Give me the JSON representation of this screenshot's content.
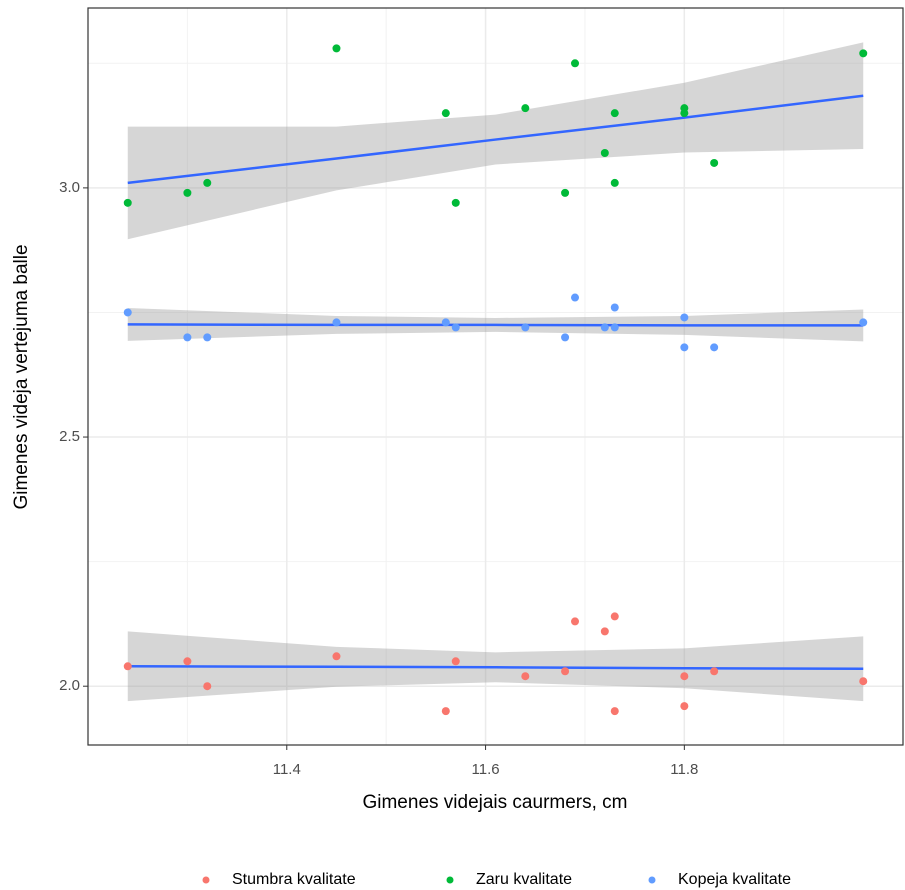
{
  "chart_data": {
    "type": "scatter",
    "x_label": "Gimenes videjais caurmers, cm",
    "y_label": "Gimenes videja vertejuma balle",
    "xlim": [
      11.2,
      12.02
    ],
    "ylim": [
      1.882,
      3.361
    ],
    "xticks": [
      11.4,
      11.6,
      11.8
    ],
    "yticks": [
      {
        "value": 2,
        "label": "2.0"
      },
      2.5,
      {
        "value": 3,
        "label": "3.0"
      }
    ],
    "xminor": [
      11.3,
      11.5,
      11.7,
      11.9
    ],
    "yminor": [
      2.25,
      2.75,
      3.25
    ],
    "grid": true,
    "legend": "bottom",
    "fit_color": "#3366FF",
    "fit_x": [
      11.24,
      11.45,
      11.61,
      11.8,
      11.98
    ],
    "series": [
      {
        "name": "Stumbra kvalitate",
        "color": "#F8766D",
        "x": [
          11.24,
          11.3,
          11.32,
          11.45,
          11.56,
          11.57,
          11.64,
          11.68,
          11.69,
          11.72,
          11.73,
          11.73,
          11.8,
          11.8,
          11.83,
          11.98
        ],
        "values": [
          2.04,
          2.05,
          2.0,
          2.06,
          1.95,
          2.05,
          2.02,
          2.03,
          2.13,
          2.11,
          2.14,
          1.95,
          2.02,
          1.96,
          2.03,
          2.01
        ],
        "fit_values": [
          2.04,
          2.039,
          2.038,
          2.036,
          2.035
        ],
        "fit_lower": [
          1.97,
          1.999,
          2.008,
          1.996,
          1.97
        ],
        "fit_upper": [
          2.11,
          2.079,
          2.068,
          2.076,
          2.1
        ]
      },
      {
        "name": "Zaru kvalitate",
        "color": "#00BA38",
        "x": [
          11.24,
          11.3,
          11.32,
          11.45,
          11.56,
          11.57,
          11.64,
          11.68,
          11.69,
          11.72,
          11.73,
          11.73,
          11.8,
          11.8,
          11.83,
          11.98
        ],
        "values": [
          2.97,
          2.99,
          3.01,
          3.28,
          3.15,
          2.97,
          3.16,
          2.99,
          3.25,
          3.07,
          3.15,
          3.01,
          3.16,
          3.15,
          3.05,
          3.27
        ],
        "fit_values": [
          3.01,
          3.059,
          3.097,
          3.141,
          3.185
        ],
        "fit_lower": [
          2.897,
          2.995,
          3.047,
          3.071,
          3.078
        ],
        "fit_upper": [
          3.123,
          3.123,
          3.147,
          3.211,
          3.292
        ]
      },
      {
        "name": "Kopeja kvalitate",
        "color": "#619CFF",
        "x": [
          11.24,
          11.3,
          11.32,
          11.45,
          11.56,
          11.57,
          11.64,
          11.68,
          11.69,
          11.72,
          11.73,
          11.73,
          11.8,
          11.8,
          11.83,
          11.98
        ],
        "values": [
          2.75,
          2.7,
          2.7,
          2.73,
          2.73,
          2.72,
          2.72,
          2.7,
          2.78,
          2.72,
          2.76,
          2.72,
          2.74,
          2.68,
          2.68,
          2.73
        ],
        "fit_values": [
          2.726,
          2.725,
          2.725,
          2.724,
          2.724
        ],
        "fit_lower": [
          2.693,
          2.707,
          2.711,
          2.705,
          2.692
        ],
        "fit_upper": [
          2.759,
          2.743,
          2.739,
          2.743,
          2.756
        ]
      }
    ]
  }
}
